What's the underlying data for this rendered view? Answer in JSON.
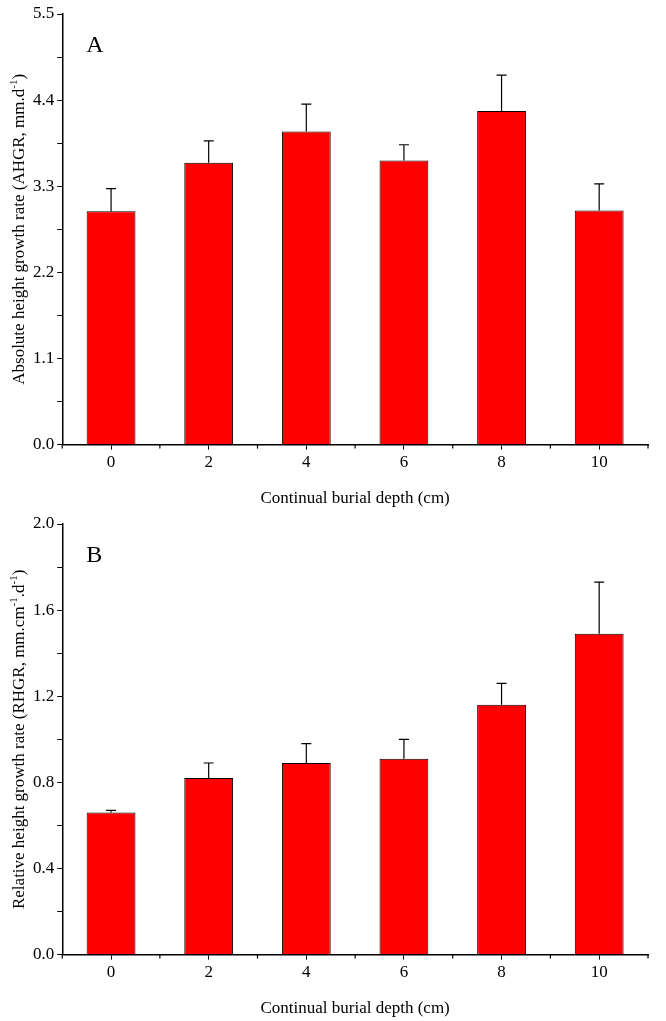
{
  "chart_data": [
    {
      "type": "bar",
      "annotations": [
        "A"
      ],
      "xlabel": "Continual burial depth (cm)",
      "ylabel": "Absolute height growth rate (AHGR, mm.d$^{-1}$)",
      "categories": [
        "0",
        "2",
        "4",
        "6",
        "8",
        "10"
      ],
      "values": [
        2.98,
        3.6,
        4.0,
        3.63,
        4.26,
        2.99
      ],
      "color": "#ff0000",
      "errors": [
        [
          2.98,
          3.27
        ],
        [
          3.6,
          3.88
        ],
        [
          4.0,
          4.35
        ],
        [
          3.63,
          3.83
        ],
        [
          4.26,
          4.72
        ],
        [
          2.99,
          3.33
        ]
      ],
      "ylim": [
        0,
        5.5
      ],
      "yticks": [
        {
          "value": 0,
          "label": "0.0"
        },
        {
          "value": 0.55,
          "label": null
        },
        1.1,
        {
          "value": 1.65,
          "label": null
        },
        2.2,
        {
          "value": 2.75,
          "label": null
        },
        3.3,
        {
          "value": 3.85,
          "label": null
        },
        4.4,
        {
          "value": 4.95,
          "label": null
        },
        5.5
      ],
      "grid": false,
      "legend": false
    },
    {
      "type": "bar",
      "annotations": [
        "B"
      ],
      "xlabel": "Continual burial depth (cm)",
      "ylabel": "Relative height growth rate (RHGR, mm.cm$^{-1}$.d$^{-1}$)",
      "categories": [
        "0",
        "2",
        "4",
        "6",
        "8",
        "10"
      ],
      "values": [
        0.66,
        0.82,
        0.89,
        0.91,
        1.16,
        1.49
      ],
      "color": "#ff0000",
      "errors": [
        [
          0.66,
          0.67
        ],
        [
          0.82,
          0.89
        ],
        [
          0.89,
          0.98
        ],
        [
          0.91,
          1.0
        ],
        [
          1.16,
          1.26
        ],
        [
          1.49,
          1.73
        ]
      ],
      "ylim": [
        0,
        2.0
      ],
      "yticks": [
        {
          "value": 0,
          "label": "0.0"
        },
        {
          "value": 0.2,
          "label": null
        },
        0.4,
        {
          "value": 0.6,
          "label": null
        },
        0.8,
        {
          "value": 1.0,
          "label": null
        },
        1.2,
        {
          "value": 1.4,
          "label": null
        },
        1.6,
        {
          "value": 1.8,
          "label": null
        },
        {
          "value": 2.0,
          "label": "2.0"
        }
      ],
      "grid": false,
      "legend": false
    }
  ]
}
